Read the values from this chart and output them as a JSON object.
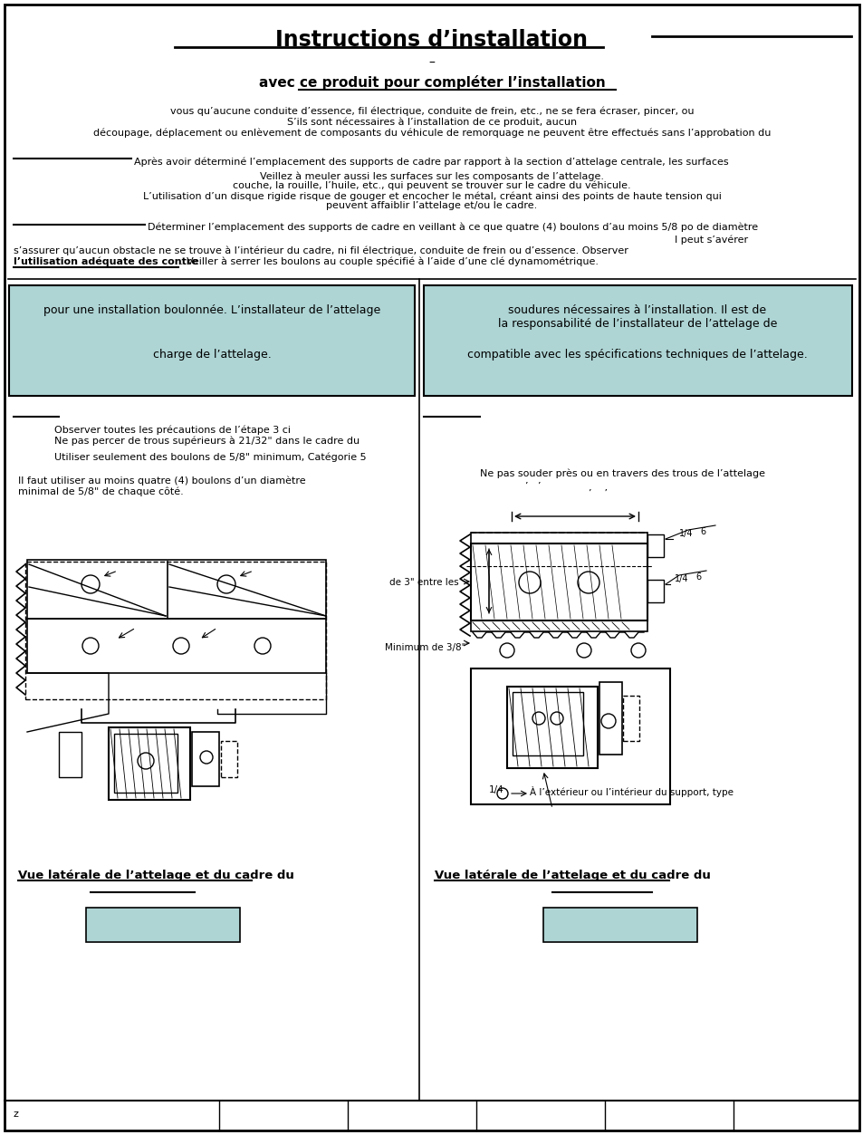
{
  "title": "Instructions d’installation",
  "subtitle_dash": "–",
  "subtitle2": "avec ce produit pour compléter l’installation",
  "step_line1": "Après avoir déterminé l’emplacement des supports de cadre par rapport à la section d’attelage centrale, les surfaces",
  "step_line3": "Déterminer l’emplacement des supports de cadre en veillant à ce que quatre (4) boulons d’au moins 5/8 po de diamètre",
  "step_line4": "I peut s’avérer",
  "step_line5": "s’assurer qu’aucun obstacle ne se trouve à l’intérieur du cadre, ni fil électrique, conduite de frein ou d’essence. Observer",
  "step_bold": "l’utilisation adéquate des contre",
  "step_line6": ". Veiller à serrer les boulons au couple spécifié à l’aide d’une clé dynamométrique.",
  "left_step1": "Observer toutes les précautions de l’étape 3 ci",
  "left_step2": "Ne pas percer de trous supérieurs à 21/32\" dans le cadre du",
  "left_step3": "Utiliser seulement des boulons de 5/8\" minimum, Catégorie 5",
  "left_step4a": "Il faut utiliser au moins quatre (4) boulons d’un diamètre",
  "left_step4b": "minimal de 5/8\" de chaque côté.",
  "right_note": "Ne pas souder près ou en travers des trous de l’attelage",
  "caption_left": "Vue latérale de l’attelage et du cadre du",
  "caption_right": "Vue latérale de l’attelage et du cadre du",
  "footer_z": "z",
  "box_fill": "#aed4d4",
  "bg_color": "#ffffff",
  "text_color": "#000000"
}
